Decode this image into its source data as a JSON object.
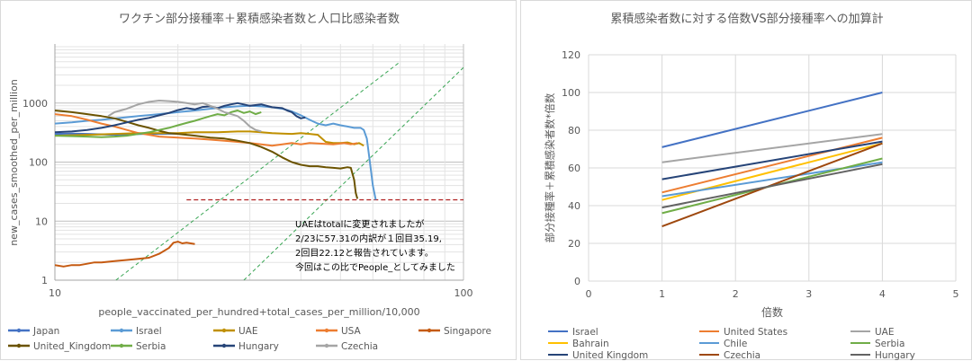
{
  "chart_data": [
    {
      "type": "line",
      "title": "ワクチン部分接種率＋累積感染者数と人口比感染者数",
      "xlabel": "people_vaccinated_per_hundred+total_cases_per_million/10,000",
      "ylabel": "new_cases_smoothed_per_million",
      "xscale": "log",
      "yscale": "log",
      "xlim": [
        10,
        100
      ],
      "ylim": [
        1,
        10000
      ],
      "x_ticks": [
        "10",
        "100"
      ],
      "y_ticks": [
        "1",
        "10",
        "100",
        "1000"
      ],
      "grid": true,
      "legend_position": "bottom",
      "annotation": [
        "UAEはtotalに変更されましたが",
        "2/23に57.31の内訳が１回目35.19,",
        "2回目22.12と報告されています。",
        "今回はこの比でPeople_としてみました"
      ],
      "series": [
        {
          "name": "Japan",
          "color": "#4472c4",
          "points": [
            [
              10.0,
              300
            ],
            [
              11.0,
              305
            ],
            [
              12.0,
              300
            ],
            [
              13.0,
              295
            ],
            [
              14.0,
              290
            ],
            [
              15.0,
              295
            ],
            [
              16.5,
              300
            ],
            [
              18.0,
              300
            ],
            [
              20.0,
              305
            ],
            [
              21.0,
              300
            ]
          ]
        },
        {
          "name": "Israel",
          "color": "#5b9bd5",
          "points": [
            [
              10.0,
              450
            ],
            [
              11.0,
              470
            ],
            [
              12.0,
              500
            ],
            [
              13.0,
              520
            ],
            [
              14.5,
              560
            ],
            [
              16.0,
              600
            ],
            [
              18.0,
              650
            ],
            [
              20.0,
              700
            ],
            [
              22.0,
              750
            ],
            [
              24.0,
              800
            ],
            [
              26.0,
              850
            ],
            [
              28.0,
              880
            ],
            [
              30.0,
              900
            ],
            [
              32.0,
              880
            ],
            [
              34.0,
              850
            ],
            [
              36.0,
              800
            ],
            [
              38.0,
              720
            ],
            [
              40.0,
              620
            ],
            [
              42.0,
              520
            ],
            [
              44.0,
              450
            ],
            [
              46.0,
              420
            ],
            [
              48.0,
              450
            ],
            [
              50.0,
              420
            ],
            [
              52.0,
              400
            ],
            [
              54.0,
              380
            ],
            [
              56.0,
              380
            ],
            [
              57.0,
              350
            ],
            [
              58.0,
              250
            ],
            [
              59.0,
              100
            ],
            [
              60.0,
              40
            ],
            [
              61.0,
              23
            ]
          ]
        },
        {
          "name": "UAE",
          "color": "#c09000",
          "points": [
            [
              10.0,
              280
            ],
            [
              12.0,
              290
            ],
            [
              14.0,
              300
            ],
            [
              16.0,
              310
            ],
            [
              18.0,
              310
            ],
            [
              20.0,
              310
            ],
            [
              22.0,
              320
            ],
            [
              25.0,
              320
            ],
            [
              28.0,
              330
            ],
            [
              30.0,
              330
            ],
            [
              32.0,
              320
            ],
            [
              34.0,
              310
            ],
            [
              36.0,
              305
            ],
            [
              38.0,
              300
            ],
            [
              40.0,
              310
            ],
            [
              42.0,
              300
            ],
            [
              44.0,
              290
            ],
            [
              46.0,
              220
            ],
            [
              48.0,
              210
            ],
            [
              50.0,
              210
            ],
            [
              52.0,
              215
            ],
            [
              54.0,
              200
            ],
            [
              55.5,
              210
            ],
            [
              57.0,
              190
            ]
          ]
        },
        {
          "name": "USA",
          "color": "#ed7d31",
          "points": [
            [
              10.0,
              650
            ],
            [
              11.0,
              600
            ],
            [
              12.0,
              520
            ],
            [
              13.0,
              450
            ],
            [
              14.0,
              400
            ],
            [
              15.0,
              350
            ],
            [
              16.0,
              310
            ],
            [
              17.0,
              290
            ],
            [
              18.0,
              270
            ],
            [
              20.0,
              260
            ],
            [
              22.0,
              250
            ],
            [
              24.0,
              240
            ],
            [
              26.0,
              230
            ],
            [
              28.0,
              220
            ],
            [
              30.0,
              210
            ],
            [
              32.0,
              200
            ],
            [
              34.0,
              190
            ],
            [
              36.0,
              200
            ],
            [
              38.0,
              210
            ],
            [
              40.0,
              200
            ],
            [
              42.0,
              210
            ],
            [
              45.0,
              205
            ],
            [
              48.0,
              200
            ],
            [
              51.0,
              210
            ],
            [
              53.0,
              200
            ],
            [
              55.0,
              210
            ]
          ]
        },
        {
          "name": "Singapore",
          "color": "#c55a11",
          "points": [
            [
              10.0,
              1.8
            ],
            [
              10.5,
              1.7
            ],
            [
              11.0,
              1.8
            ],
            [
              11.5,
              1.8
            ],
            [
              12.0,
              1.9
            ],
            [
              12.5,
              2.0
            ],
            [
              13.0,
              2.0
            ],
            [
              14.0,
              2.1
            ],
            [
              15.0,
              2.2
            ],
            [
              16.0,
              2.3
            ],
            [
              17.0,
              2.4
            ],
            [
              18.0,
              2.8
            ],
            [
              19.0,
              3.5
            ],
            [
              19.5,
              4.3
            ],
            [
              20.0,
              4.5
            ],
            [
              20.5,
              4.2
            ],
            [
              21.0,
              4.3
            ],
            [
              22.0,
              4.1
            ]
          ]
        },
        {
          "name": "United_Kingdom",
          "color": "#6b5300",
          "points": [
            [
              10.0,
              750
            ],
            [
              11.0,
              700
            ],
            [
              12.0,
              650
            ],
            [
              13.0,
              600
            ],
            [
              14.0,
              550
            ],
            [
              15.0,
              480
            ],
            [
              16.0,
              420
            ],
            [
              17.0,
              380
            ],
            [
              18.0,
              340
            ],
            [
              19.0,
              310
            ],
            [
              20.0,
              300
            ],
            [
              22.0,
              280
            ],
            [
              24.0,
              260
            ],
            [
              26.0,
              250
            ],
            [
              28.0,
              230
            ],
            [
              30.0,
              210
            ],
            [
              32.0,
              180
            ],
            [
              34.0,
              150
            ],
            [
              36.0,
              120
            ],
            [
              38.0,
              100
            ],
            [
              40.0,
              90
            ],
            [
              42.0,
              85
            ],
            [
              44.0,
              85
            ],
            [
              46.0,
              82
            ],
            [
              48.0,
              80
            ],
            [
              50.0,
              78
            ],
            [
              52.0,
              82
            ],
            [
              53.0,
              80
            ],
            [
              54.0,
              50
            ],
            [
              54.5,
              30
            ],
            [
              55.0,
              24
            ]
          ]
        },
        {
          "name": "Serbia",
          "color": "#70ad47",
          "points": [
            [
              10.0,
              280
            ],
            [
              11.0,
              275
            ],
            [
              12.0,
              270
            ],
            [
              13.0,
              265
            ],
            [
              14.0,
              270
            ],
            [
              15.0,
              280
            ],
            [
              16.0,
              300
            ],
            [
              17.0,
              320
            ],
            [
              18.0,
              350
            ],
            [
              19.0,
              380
            ],
            [
              20.0,
              420
            ],
            [
              21.0,
              460
            ],
            [
              22.0,
              500
            ],
            [
              23.0,
              550
            ],
            [
              24.0,
              600
            ],
            [
              25.0,
              650
            ],
            [
              26.0,
              620
            ],
            [
              27.0,
              700
            ],
            [
              28.0,
              750
            ],
            [
              29.0,
              680
            ],
            [
              30.0,
              720
            ],
            [
              31.0,
              650
            ],
            [
              32.0,
              700
            ]
          ]
        },
        {
          "name": "Hungary",
          "color": "#264478",
          "points": [
            [
              10.0,
              320
            ],
            [
              11.0,
              330
            ],
            [
              12.0,
              350
            ],
            [
              13.0,
              380
            ],
            [
              14.0,
              420
            ],
            [
              15.0,
              470
            ],
            [
              16.0,
              520
            ],
            [
              17.0,
              560
            ],
            [
              18.0,
              620
            ],
            [
              19.0,
              680
            ],
            [
              20.0,
              760
            ],
            [
              21.0,
              820
            ],
            [
              22.0,
              780
            ],
            [
              23.0,
              860
            ],
            [
              24.0,
              880
            ],
            [
              25.0,
              820
            ],
            [
              26.0,
              900
            ],
            [
              27.0,
              950
            ],
            [
              28.0,
              1000
            ],
            [
              30.0,
              900
            ],
            [
              32.0,
              950
            ],
            [
              34.0,
              850
            ],
            [
              36.0,
              820
            ],
            [
              37.0,
              750
            ],
            [
              38.0,
              700
            ],
            [
              39.0,
              600
            ],
            [
              40.0,
              550
            ],
            [
              41.0,
              570
            ]
          ]
        },
        {
          "name": "Czechia",
          "color": "#a5a5a5",
          "points": [
            [
              13.5,
              600
            ],
            [
              14.0,
              700
            ],
            [
              15.0,
              800
            ],
            [
              16.0,
              950
            ],
            [
              17.0,
              1050
            ],
            [
              18.0,
              1100
            ],
            [
              19.0,
              1080
            ],
            [
              20.0,
              1050
            ],
            [
              21.0,
              1000
            ],
            [
              22.0,
              950
            ],
            [
              23.0,
              1000
            ],
            [
              24.0,
              900
            ],
            [
              25.0,
              800
            ],
            [
              26.0,
              700
            ],
            [
              27.0,
              650
            ],
            [
              28.0,
              600
            ],
            [
              29.0,
              500
            ],
            [
              30.0,
              400
            ],
            [
              31.0,
              350
            ],
            [
              32.0,
              330
            ]
          ]
        }
      ],
      "reference_lines": [
        {
          "style": "green-dashed",
          "points": [
            [
              14.1,
              1
            ],
            [
              70,
              5000
            ]
          ]
        },
        {
          "style": "green-dashed",
          "points": [
            [
              29,
              1
            ],
            [
              100,
              4000
            ]
          ]
        },
        {
          "style": "red-dashed",
          "points": [
            [
              21,
              23
            ],
            [
              100,
              23
            ]
          ]
        }
      ]
    },
    {
      "type": "line",
      "title": "累積感染者数に対する倍数VS部分接種率への加算計",
      "xlabel": "倍数",
      "ylabel": "部分接種率＋累積感染者数*倍数",
      "xlim": [
        0,
        5
      ],
      "ylim": [
        0,
        120
      ],
      "x_ticks": [
        0,
        1,
        2,
        3,
        4,
        5
      ],
      "y_ticks": [
        0,
        20,
        40,
        60,
        80,
        100,
        120
      ],
      "grid": true,
      "legend_position": "bottom",
      "x": [
        1,
        4
      ],
      "series": [
        {
          "name": "Israel",
          "color": "#4472c4",
          "values": [
            71,
            100
          ]
        },
        {
          "name": "United States",
          "color": "#ed7d31",
          "values": [
            47,
            76
          ]
        },
        {
          "name": "UAE",
          "color": "#a5a5a5",
          "values": [
            63,
            78
          ]
        },
        {
          "name": "Bahrain",
          "color": "#ffc000",
          "values": [
            43,
            73
          ]
        },
        {
          "name": "Chile",
          "color": "#5b9bd5",
          "values": [
            45,
            63
          ]
        },
        {
          "name": "Serbia",
          "color": "#70ad47",
          "values": [
            36,
            65
          ]
        },
        {
          "name": "United Kingdom",
          "color": "#264478",
          "values": [
            54,
            74
          ]
        },
        {
          "name": "Czechia",
          "color": "#9e480e",
          "values": [
            29,
            73
          ]
        },
        {
          "name": "Hungary",
          "color": "#636363",
          "values": [
            39,
            62
          ]
        }
      ]
    }
  ]
}
